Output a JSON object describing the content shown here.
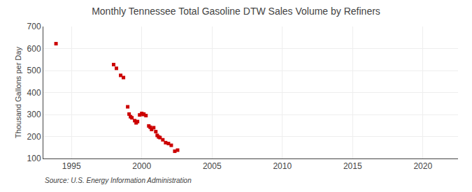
{
  "chart_data": {
    "type": "scatter",
    "title": "Monthly Tennessee Total Gasoline DTW Sales Volume by Refiners",
    "ylabel": "Thousand Gallons per Day",
    "source": "Source: U.S. Energy Information Administration",
    "x": [
      1993.9,
      1998.0,
      1998.2,
      1998.5,
      1998.7,
      1999.0,
      1999.1,
      1999.2,
      1999.3,
      1999.5,
      1999.6,
      1999.7,
      1999.85,
      2000.0,
      2000.1,
      2000.15,
      2000.3,
      2000.5,
      2000.6,
      2000.7,
      2000.85,
      2001.0,
      2001.1,
      2001.2,
      2001.3,
      2001.5,
      2001.7,
      2001.9,
      2002.1,
      2002.35,
      2002.55
    ],
    "values": [
      622,
      527,
      510,
      478,
      468,
      335,
      302,
      290,
      285,
      272,
      262,
      268,
      298,
      305,
      300,
      302,
      295,
      248,
      242,
      232,
      240,
      222,
      205,
      198,
      195,
      185,
      172,
      168,
      160,
      133,
      138
    ],
    "color": "#cc0000",
    "marker": "square",
    "xlim": [
      1993.0,
      2022.5
    ],
    "ylim": [
      100,
      700
    ],
    "xticks": [
      1995,
      2000,
      2005,
      2010,
      2015,
      2020
    ],
    "yticks": [
      100,
      200,
      300,
      400,
      500,
      600,
      700
    ],
    "grid": true
  }
}
